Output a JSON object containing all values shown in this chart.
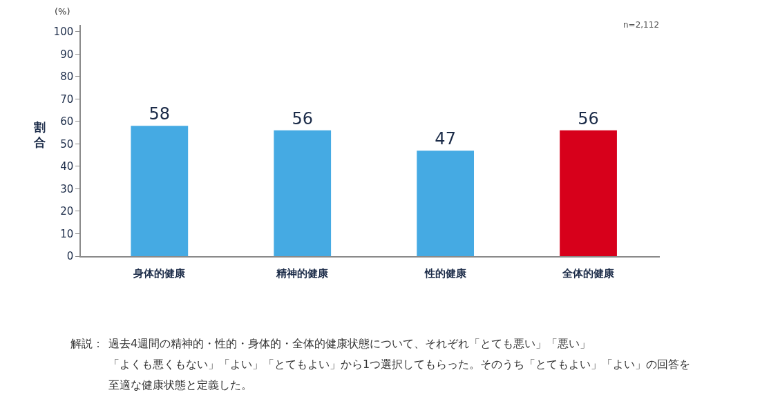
{
  "chart_data": {
    "type": "bar",
    "categories": [
      "身体的健康",
      "精神的健康",
      "性的健康",
      "全体的健康"
    ],
    "values": [
      58,
      56,
      47,
      56
    ],
    "colors": [
      "#45aae3",
      "#45aae3",
      "#45aae3",
      "#d7001b"
    ],
    "ylabel": "割合",
    "ylim": [
      0,
      103
    ],
    "yticks": [
      0,
      10,
      20,
      30,
      40,
      50,
      60,
      70,
      80,
      90,
      100
    ],
    "data_labels": true,
    "annotations": [
      "(%)",
      "n=2,112",
      "解説：",
      "過去4週間の精神的・性的・身体的・全体的健康状態について、それぞれ「とても悪い」「悪い」「よくも悪くもない」「よい」「とてもよい」から1つ選択してもらった。そのうち「とてもよい」「よい」の回答を至適な健康状態と定義した。"
    ]
  }
}
